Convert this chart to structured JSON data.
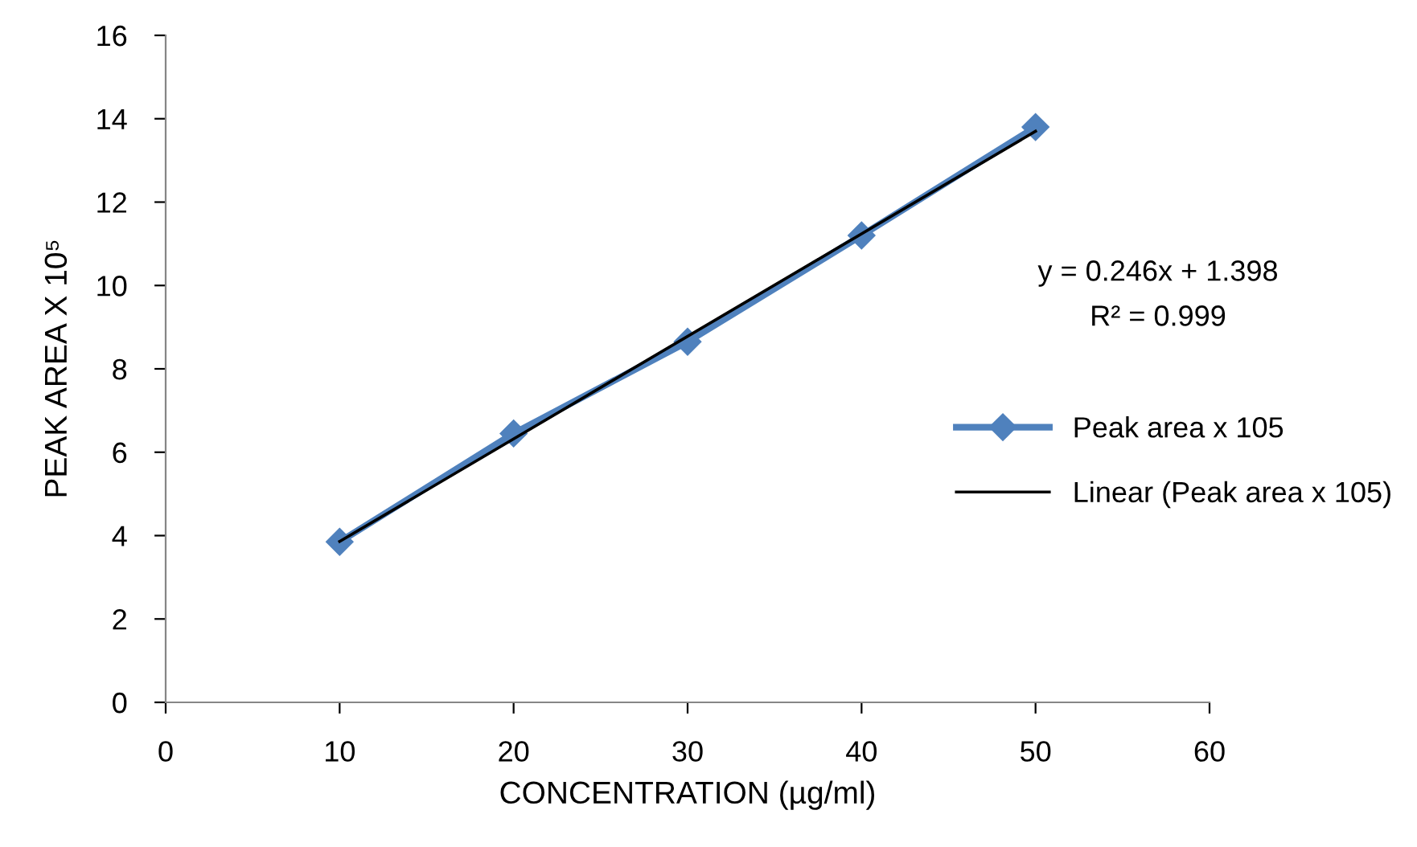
{
  "chart_data": {
    "type": "line",
    "xlabel": "CONCENTRATION (µg/ml)",
    "ylabel": "PEAK AREA X 10⁵",
    "series": [
      {
        "name": "Peak area x 105",
        "color": "#4f81bd",
        "x": [
          10,
          20,
          30,
          40,
          50
        ],
        "values": [
          3.85,
          6.45,
          8.65,
          11.2,
          13.8
        ],
        "marker": "diamond",
        "line_style": "solid"
      },
      {
        "name": "Linear (Peak area x 105)",
        "color": "#000000",
        "x": [
          10,
          50
        ],
        "values": [
          3.86,
          13.7
        ],
        "marker": "none",
        "line_style": "solid"
      }
    ],
    "annotations": [
      "y = 0.246x + 1.398",
      "R² = 0.999"
    ],
    "xlim": [
      0,
      60
    ],
    "xticks": [
      0,
      10,
      20,
      30,
      40,
      50,
      60
    ],
    "ylim": [
      0,
      16
    ],
    "yticks": [
      0,
      2,
      4,
      6,
      8,
      10,
      12,
      14,
      16
    ],
    "grid": false,
    "legend": "right"
  }
}
